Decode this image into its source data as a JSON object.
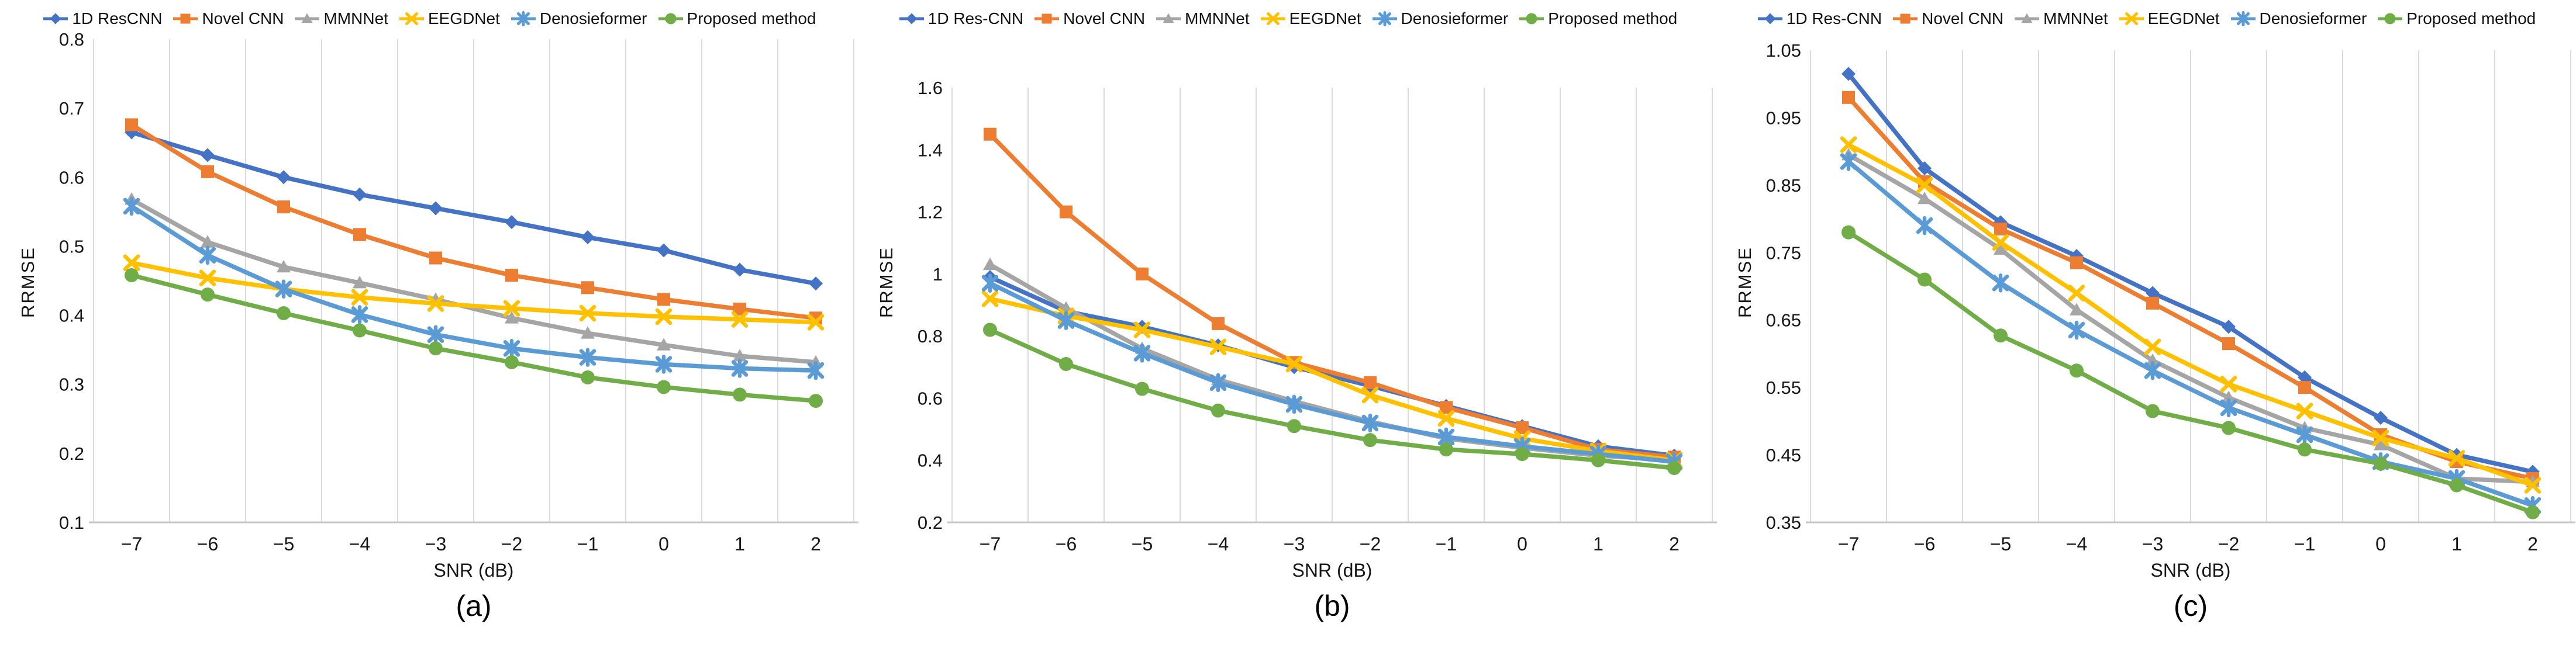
{
  "page": {
    "background": "#ffffff",
    "description": "Three-panel comparison of EEG denoising methods: RRMSE versus SNR"
  },
  "style_tokens": {
    "gridline_color": "#dadada",
    "axis_line_color": "#c6c6c6",
    "text_color": "#161616"
  },
  "chart_data": [
    {
      "type": "line",
      "caption": "(a)",
      "xlabel": "SNR (dB)",
      "ylabel": "RRMSE",
      "legend_position": "top",
      "grid": "vertical-only",
      "x_categories": [
        "-7",
        "-6",
        "-5",
        "-4",
        "-3",
        "-2",
        "-1",
        "0",
        "1",
        "2"
      ],
      "ylim": [
        0.1,
        0.8
      ],
      "yticks": [
        "0.8",
        "0.7",
        "0.6",
        "0.5",
        "0.4",
        "0.3",
        "0.2",
        "0.1"
      ],
      "series": [
        {
          "name": "1D ResCNN",
          "color": "#4472C4",
          "marker": "diamond",
          "values": [
            0.665,
            0.632,
            0.6,
            0.575,
            0.555,
            0.535,
            0.513,
            0.494,
            0.466,
            0.446
          ]
        },
        {
          "name": "Novel CNN",
          "color": "#ED7D31",
          "marker": "square",
          "values": [
            0.676,
            0.608,
            0.557,
            0.517,
            0.483,
            0.458,
            0.44,
            0.423,
            0.409,
            0.396
          ]
        },
        {
          "name": "MMNNet",
          "color": "#A5A5A5",
          "marker": "triangle",
          "values": [
            0.568,
            0.506,
            0.47,
            0.447,
            0.423,
            0.396,
            0.374,
            0.357,
            0.341,
            0.332
          ]
        },
        {
          "name": "EEGDNet",
          "color": "#FFC000",
          "marker": "x",
          "values": [
            0.476,
            0.454,
            0.438,
            0.426,
            0.417,
            0.41,
            0.403,
            0.398,
            0.394,
            0.39
          ]
        },
        {
          "name": "Denosieformer",
          "color": "#5B9BD5",
          "marker": "asterisk",
          "values": [
            0.558,
            0.487,
            0.438,
            0.401,
            0.372,
            0.352,
            0.339,
            0.329,
            0.323,
            0.32
          ]
        },
        {
          "name": "Proposed method",
          "color": "#70AD47",
          "marker": "circle",
          "values": [
            0.458,
            0.43,
            0.403,
            0.378,
            0.352,
            0.332,
            0.31,
            0.296,
            0.285,
            0.276
          ]
        }
      ]
    },
    {
      "type": "line",
      "caption": "(b)",
      "xlabel": "SNR (dB)",
      "ylabel": "RRMSE",
      "legend_position": "top",
      "grid": "vertical-only",
      "x_categories": [
        "-7",
        "-6",
        "-5",
        "-4",
        "-3",
        "-2",
        "-1",
        "0",
        "1",
        "2"
      ],
      "ylim": [
        0.2,
        1.6
      ],
      "yticks": [
        "1.6",
        "1.4",
        "1.2",
        "1",
        "0.8",
        "0.6",
        "0.4",
        "0.2"
      ],
      "series": [
        {
          "name": "1D Res-CNN",
          "color": "#4472C4",
          "marker": "diamond",
          "values": [
            0.99,
            0.88,
            0.83,
            0.77,
            0.7,
            0.64,
            0.575,
            0.51,
            0.445,
            0.415
          ]
        },
        {
          "name": "Novel CNN",
          "color": "#ED7D31",
          "marker": "square",
          "values": [
            1.45,
            1.2,
            1.0,
            0.84,
            0.715,
            0.65,
            0.57,
            0.505,
            0.435,
            0.41
          ]
        },
        {
          "name": "MMNNet",
          "color": "#A5A5A5",
          "marker": "triangle",
          "values": [
            1.03,
            0.89,
            0.76,
            0.66,
            0.59,
            0.525,
            0.47,
            0.44,
            0.415,
            0.4
          ]
        },
        {
          "name": "EEGDNet",
          "color": "#FFC000",
          "marker": "x",
          "values": [
            0.92,
            0.865,
            0.82,
            0.765,
            0.71,
            0.61,
            0.535,
            0.47,
            0.43,
            0.4
          ]
        },
        {
          "name": "Denosieformer",
          "color": "#5B9BD5",
          "marker": "asterisk",
          "values": [
            0.97,
            0.85,
            0.745,
            0.65,
            0.58,
            0.52,
            0.475,
            0.445,
            0.42,
            0.395
          ]
        },
        {
          "name": "Proposed method",
          "color": "#70AD47",
          "marker": "circle",
          "values": [
            0.82,
            0.71,
            0.63,
            0.56,
            0.51,
            0.465,
            0.435,
            0.42,
            0.4,
            0.375
          ]
        }
      ]
    },
    {
      "type": "line",
      "caption": "(c)",
      "xlabel": "SNR (dB)",
      "ylabel": "RRMSE",
      "legend_position": "top",
      "grid": "vertical-only",
      "x_categories": [
        "-7",
        "-6",
        "-5",
        "-4",
        "-3",
        "-2",
        "-1",
        "0",
        "1",
        "2"
      ],
      "ylim": [
        0.35,
        1.05
      ],
      "yticks": [
        "1.05",
        "0.95",
        "0.85",
        "0.75",
        "0.65",
        "0.55",
        "0.45",
        "0.35"
      ],
      "series": [
        {
          "name": "1D Res-CNN",
          "color": "#4472C4",
          "marker": "diamond",
          "values": [
            1.015,
            0.875,
            0.795,
            0.745,
            0.69,
            0.64,
            0.565,
            0.505,
            0.45,
            0.425
          ]
        },
        {
          "name": "Novel CNN",
          "color": "#ED7D31",
          "marker": "square",
          "values": [
            0.98,
            0.855,
            0.785,
            0.735,
            0.675,
            0.615,
            0.55,
            0.48,
            0.44,
            0.415
          ]
        },
        {
          "name": "MMNNet",
          "color": "#A5A5A5",
          "marker": "triangle",
          "values": [
            0.895,
            0.83,
            0.755,
            0.665,
            0.59,
            0.535,
            0.49,
            0.465,
            0.415,
            0.41
          ]
        },
        {
          "name": "EEGDNet",
          "color": "#FFC000",
          "marker": "x",
          "values": [
            0.91,
            0.85,
            0.765,
            0.69,
            0.61,
            0.555,
            0.515,
            0.475,
            0.445,
            0.405
          ]
        },
        {
          "name": "Denosieformer",
          "color": "#5B9BD5",
          "marker": "asterisk",
          "values": [
            0.885,
            0.79,
            0.705,
            0.635,
            0.575,
            0.52,
            0.48,
            0.44,
            0.415,
            0.375
          ]
        },
        {
          "name": "Proposed method",
          "color": "#70AD47",
          "marker": "circle",
          "values": [
            0.78,
            0.71,
            0.627,
            0.575,
            0.515,
            0.49,
            0.458,
            0.437,
            0.405,
            0.365
          ]
        }
      ]
    }
  ]
}
